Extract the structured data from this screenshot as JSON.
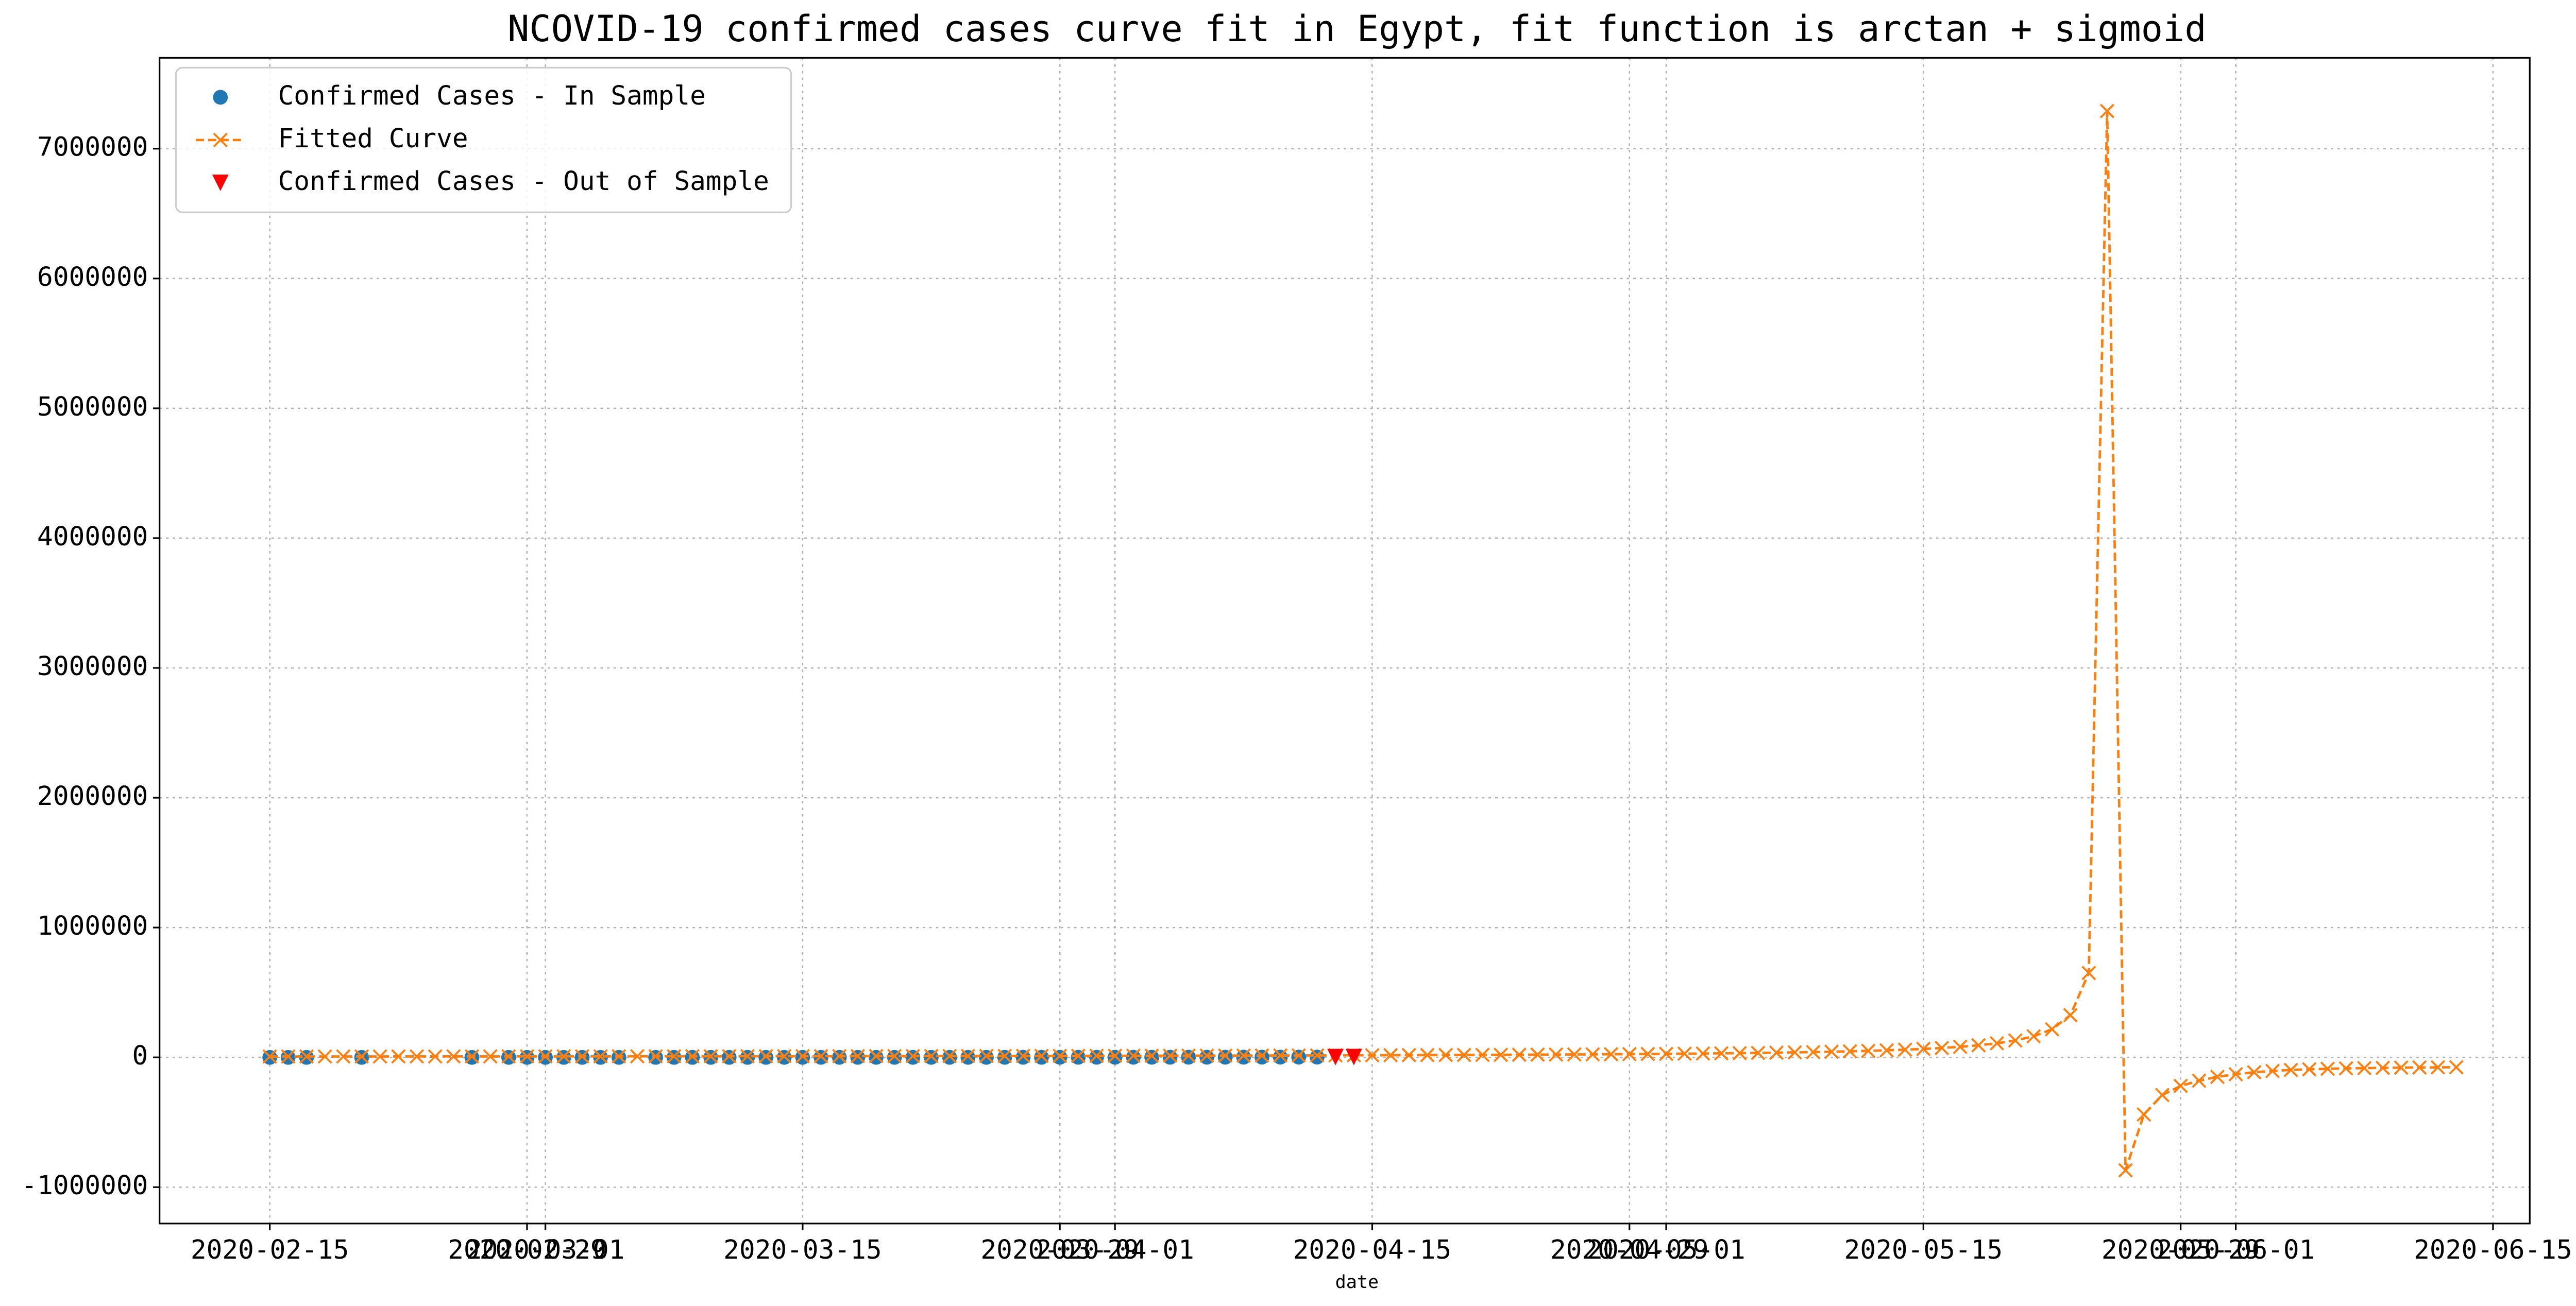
{
  "chart_data": {
    "type": "line",
    "title": "NCOVID-19 confirmed cases curve fit in Egypt, fit function is arctan + sigmoid",
    "xlabel": "date",
    "xlim": [
      "2020-02-09",
      "2020-06-17"
    ],
    "xticks": [
      "2020-02-15",
      "2020-02-29",
      "2020-03-01",
      "2020-03-15",
      "2020-03-29",
      "2020-04-01",
      "2020-04-15",
      "2020-04-29",
      "2020-05-01",
      "2020-05-15",
      "2020-05-29",
      "2020-06-01",
      "2020-06-15"
    ],
    "ylim": [
      -1280000,
      7700000
    ],
    "yticks": [
      -1000000,
      0,
      1000000,
      2000000,
      3000000,
      4000000,
      5000000,
      6000000,
      7000000
    ],
    "grid": true,
    "legend": "upper left",
    "series": [
      {
        "name": "Confirmed Cases - In Sample",
        "type": "scatter",
        "marker": "circle",
        "color": "#1f77b4",
        "x": [
          "2020-02-15",
          "2020-02-16",
          "2020-02-17",
          "2020-02-20",
          "2020-02-26",
          "2020-02-28",
          "2020-02-29",
          "2020-03-01",
          "2020-03-02",
          "2020-03-03",
          "2020-03-04",
          "2020-03-05",
          "2020-03-07",
          "2020-03-08",
          "2020-03-09",
          "2020-03-10",
          "2020-03-11",
          "2020-03-12",
          "2020-03-13",
          "2020-03-14",
          "2020-03-15",
          "2020-03-16",
          "2020-03-17",
          "2020-03-18",
          "2020-03-19",
          "2020-03-20",
          "2020-03-21",
          "2020-03-22",
          "2020-03-23",
          "2020-03-24",
          "2020-03-25",
          "2020-03-26",
          "2020-03-27",
          "2020-03-28",
          "2020-03-29",
          "2020-03-30",
          "2020-03-31",
          "2020-04-01",
          "2020-04-02",
          "2020-04-03",
          "2020-04-04",
          "2020-04-05",
          "2020-04-06",
          "2020-04-07",
          "2020-04-08",
          "2020-04-09",
          "2020-04-10",
          "2020-04-11",
          "2020-04-12"
        ],
        "values": [
          1,
          1,
          1,
          1,
          1,
          1,
          1,
          2,
          2,
          2,
          2,
          3,
          48,
          55,
          55,
          59,
          60,
          67,
          80,
          109,
          110,
          150,
          196,
          196,
          256,
          285,
          294,
          327,
          366,
          402,
          456,
          495,
          536,
          576,
          609,
          656,
          710,
          779,
          865,
          985,
          1070,
          1173,
          1322,
          1450,
          1560,
          1699,
          1794,
          1939,
          2065
        ]
      },
      {
        "name": "Fitted Curve",
        "type": "line",
        "marker": "x",
        "dashed": true,
        "color": "#ff7f0e",
        "x": [
          "2020-02-15",
          "2020-02-16",
          "2020-02-17",
          "2020-02-18",
          "2020-02-19",
          "2020-02-20",
          "2020-02-21",
          "2020-02-22",
          "2020-02-23",
          "2020-02-24",
          "2020-02-25",
          "2020-02-26",
          "2020-02-27",
          "2020-02-28",
          "2020-02-29",
          "2020-03-01",
          "2020-03-02",
          "2020-03-03",
          "2020-03-04",
          "2020-03-05",
          "2020-03-06",
          "2020-03-07",
          "2020-03-08",
          "2020-03-09",
          "2020-03-10",
          "2020-03-11",
          "2020-03-12",
          "2020-03-13",
          "2020-03-14",
          "2020-03-15",
          "2020-03-16",
          "2020-03-17",
          "2020-03-18",
          "2020-03-19",
          "2020-03-20",
          "2020-03-21",
          "2020-03-22",
          "2020-03-23",
          "2020-03-24",
          "2020-03-25",
          "2020-03-26",
          "2020-03-27",
          "2020-03-28",
          "2020-03-29",
          "2020-03-30",
          "2020-03-31",
          "2020-04-01",
          "2020-04-02",
          "2020-04-03",
          "2020-04-04",
          "2020-04-05",
          "2020-04-06",
          "2020-04-07",
          "2020-04-08",
          "2020-04-09",
          "2020-04-10",
          "2020-04-11",
          "2020-04-12",
          "2020-04-13",
          "2020-04-14",
          "2020-04-15",
          "2020-04-16",
          "2020-04-17",
          "2020-04-18",
          "2020-04-19",
          "2020-04-20",
          "2020-04-21",
          "2020-04-22",
          "2020-04-23",
          "2020-04-24",
          "2020-04-25",
          "2020-04-26",
          "2020-04-27",
          "2020-04-28",
          "2020-04-29",
          "2020-04-30",
          "2020-05-01",
          "2020-05-02",
          "2020-05-03",
          "2020-05-04",
          "2020-05-05",
          "2020-05-06",
          "2020-05-07",
          "2020-05-08",
          "2020-05-09",
          "2020-05-10",
          "2020-05-11",
          "2020-05-12",
          "2020-05-13",
          "2020-05-14",
          "2020-05-15",
          "2020-05-16",
          "2020-05-17",
          "2020-05-18",
          "2020-05-19",
          "2020-05-20",
          "2020-05-21",
          "2020-05-22",
          "2020-05-23",
          "2020-05-24",
          "2020-05-25",
          "2020-05-26",
          "2020-05-27",
          "2020-05-28",
          "2020-05-29",
          "2020-05-30",
          "2020-05-31",
          "2020-06-01",
          "2020-06-02",
          "2020-06-03",
          "2020-06-04",
          "2020-06-05",
          "2020-06-06",
          "2020-06-07",
          "2020-06-08",
          "2020-06-09",
          "2020-06-10",
          "2020-06-11",
          "2020-06-12",
          "2020-06-13"
        ],
        "values": [
          6500,
          6600,
          6600,
          6700,
          6800,
          6800,
          6900,
          7000,
          7100,
          7100,
          7200,
          7300,
          7400,
          7500,
          7600,
          7600,
          7700,
          7800,
          7900,
          8000,
          8100,
          8200,
          8300,
          8400,
          8600,
          8700,
          8800,
          8900,
          9000,
          9200,
          9300,
          9400,
          9600,
          9700,
          9800,
          10000,
          10200,
          10300,
          10500,
          10700,
          10800,
          11000,
          11200,
          11400,
          11600,
          11800,
          12000,
          12300,
          12500,
          12700,
          13000,
          13300,
          13500,
          13800,
          14100,
          14400,
          14800,
          15100,
          15500,
          15900,
          16250,
          16700,
          17100,
          17600,
          18100,
          18600,
          19100,
          19700,
          20300,
          21000,
          21700,
          22400,
          23200,
          24100,
          25000,
          26000,
          27100,
          28300,
          29500,
          31000,
          32500,
          34200,
          36100,
          38200,
          40600,
          43300,
          46400,
          50000,
          54200,
          59100,
          65000,
          72200,
          81300,
          92900,
          108300,
          130000,
          162500,
          216700,
          325000,
          650000,
          7290000,
          -870000,
          -440000,
          -290000,
          -220000,
          -180000,
          -150000,
          -130000,
          -115000,
          -105000,
          -97000,
          -92000,
          -88000,
          -85000,
          -83000,
          -81000,
          -79000,
          -78000,
          -77000,
          -76000
        ]
      },
      {
        "name": "Confirmed Cases - Out of Sample",
        "type": "scatter",
        "marker": "triangle_down",
        "color": "#ff0000",
        "x": [
          "2020-04-13",
          "2020-04-14"
        ],
        "values": [
          2190,
          2350
        ]
      }
    ]
  }
}
